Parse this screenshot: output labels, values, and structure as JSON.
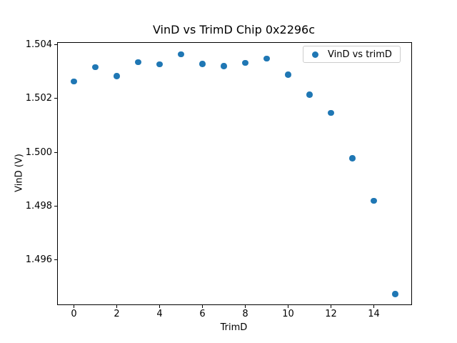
{
  "chart_data": {
    "type": "scatter",
    "title": "VinD vs TrimD Chip 0x2296c",
    "xlabel": "TrimD",
    "ylabel": "VinD (V)",
    "legend": {
      "label": "VinD vs trimD",
      "position": "upper right"
    },
    "series": [
      {
        "name": "VinD vs trimD",
        "x": [
          0,
          1,
          2,
          3,
          4,
          5,
          6,
          7,
          8,
          9,
          10,
          11,
          12,
          13,
          14,
          15
        ],
        "y": [
          1.50264,
          1.50316,
          1.50284,
          1.50335,
          1.50327,
          1.50365,
          1.50329,
          1.5032,
          1.50332,
          1.50349,
          1.50289,
          1.50214,
          1.50147,
          1.49978,
          1.49819,
          1.49472
        ]
      }
    ],
    "xlim": [
      -0.75,
      15.75
    ],
    "ylim": [
      1.49434,
      1.50407
    ],
    "xticks": {
      "values": [
        0,
        2,
        4,
        6,
        8,
        10,
        12,
        14
      ],
      "labels": [
        "0",
        "2",
        "4",
        "6",
        "8",
        "10",
        "12",
        "14"
      ]
    },
    "yticks": {
      "values": [
        1.496,
        1.498,
        1.5,
        1.502,
        1.504
      ],
      "labels": [
        "1.496",
        "1.498",
        "1.500",
        "1.502",
        "1.504"
      ]
    },
    "marker_color": "#1f77b4",
    "grid": false
  }
}
